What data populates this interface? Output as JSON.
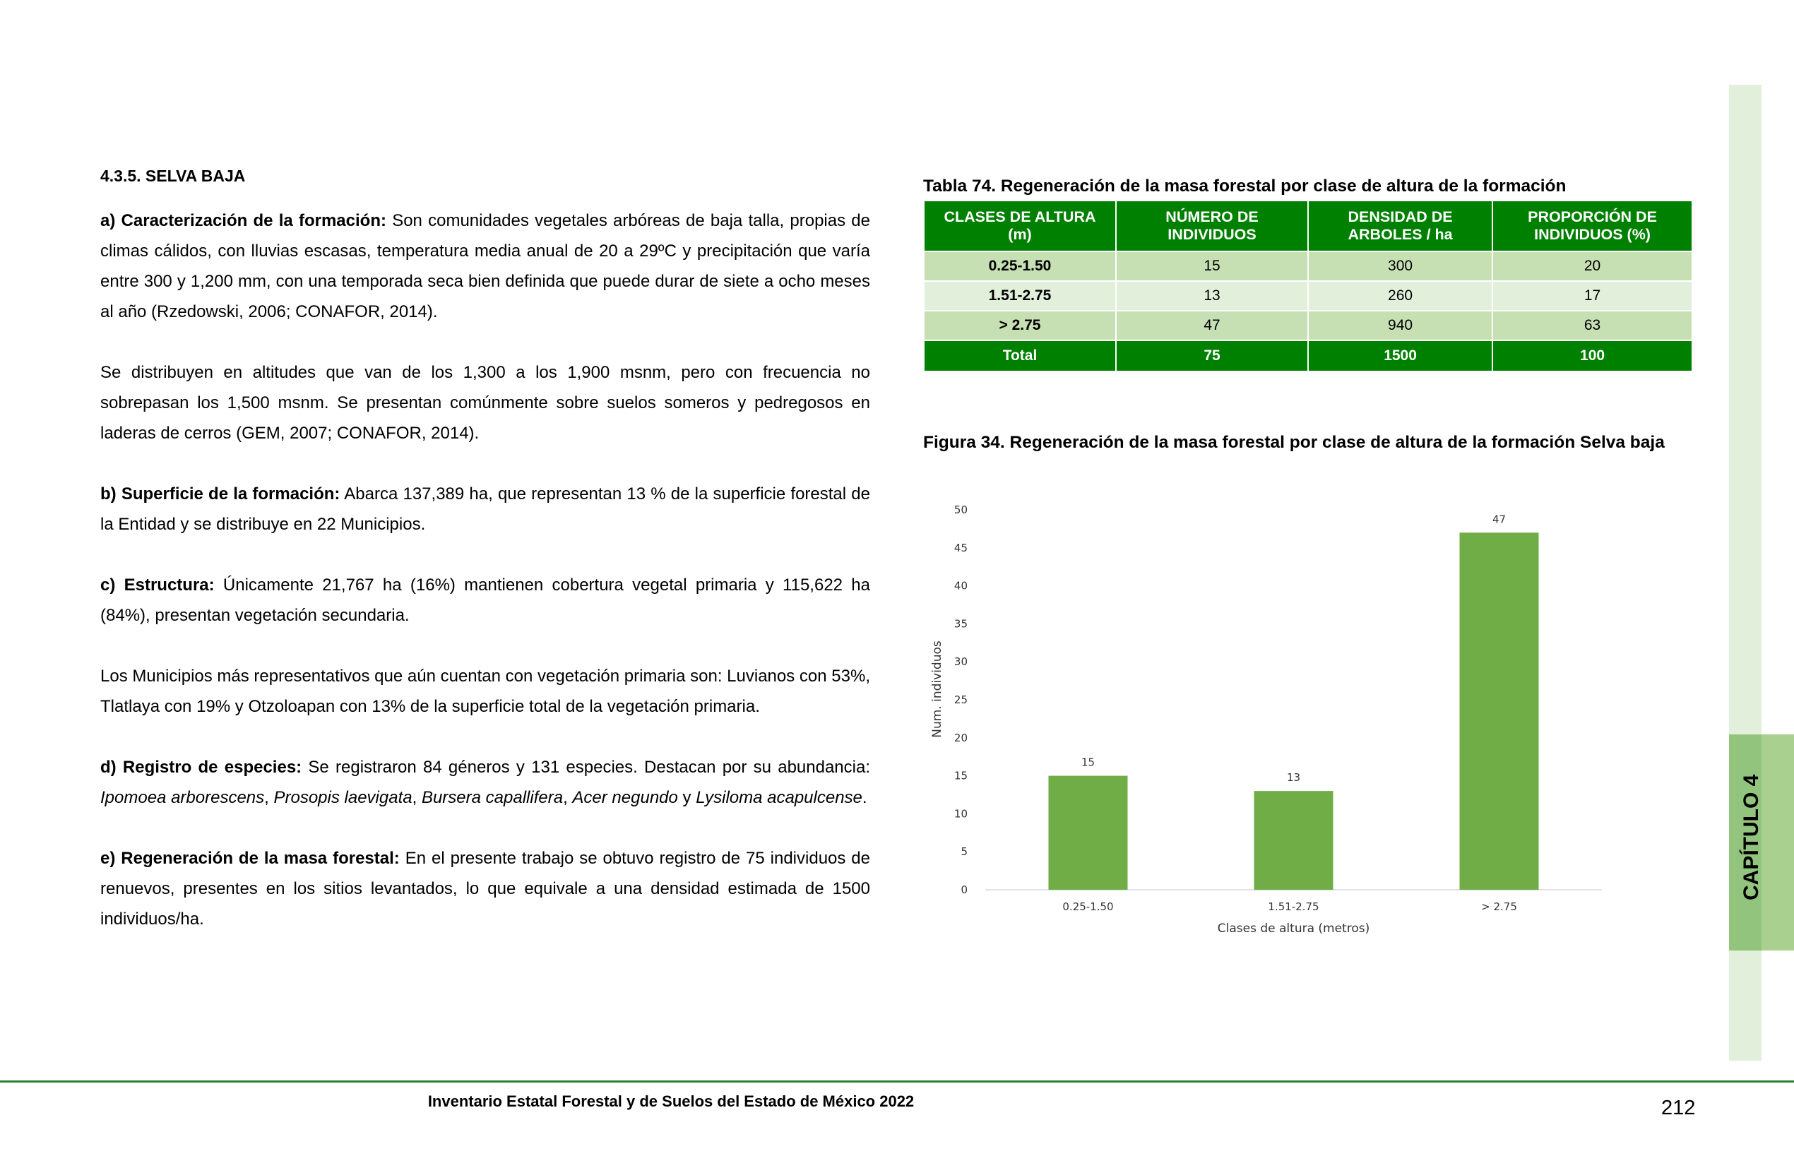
{
  "section_title": "4.3.5. SELVA BAJA",
  "paragraphs": {
    "a_label": "a) Caracterización de la formación:",
    "a_text": " Son comunidades vegetales arbóreas de baja talla, propias de climas cálidos, con lluvias escasas, temperatura media anual de 20 a 29ºC y precipitación que varía entre 300 y 1,200 mm, con una temporada seca bien definida que puede durar de siete a ocho meses al año (Rzedowski, 2006; CONAFOR, 2014).",
    "p2": "Se distribuyen en altitudes que van de los 1,300 a los 1,900 msnm, pero con frecuencia no sobrepasan los 1,500 msnm. Se presentan comúnmente sobre suelos someros y pedregosos en laderas de cerros (GEM, 2007; CONAFOR, 2014).",
    "b_label": "b) Superficie de la formación:",
    "b_text": " Abarca 137,389 ha, que representan 13 % de la superficie forestal de la Entidad y se distribuye en 22 Municipios.",
    "c_label": "c) Estructura:",
    "c_text": " Únicamente 21,767 ha (16%) mantienen cobertura vegetal primaria y 115,622 ha (84%), presentan vegetación secundaria.",
    "p5": "Los Municipios más representativos que aún cuentan con vegetación primaria son: Luvianos con 53%, Tlatlaya con 19% y Otzoloapan con 13% de la superficie total de la vegetación primaria.",
    "d_label": "d) Registro de especies:",
    "d_text": " Se registraron 84 géneros y 131 especies. Destacan por su abundancia: ",
    "d_sp1": "Ipomoea arborescens",
    "d_sep1": ", ",
    "d_sp2": "Prosopis laevigata",
    "d_sep2": ", ",
    "d_sp3": "Bursera capallifera",
    "d_sep3": ", ",
    "d_sp4": "Acer negundo",
    "d_and": " y ",
    "d_sp5": "Lysiloma acapulcense",
    "d_end": ".",
    "e_label": "e) Regeneración de la masa forestal:",
    "e_text": " En el presente trabajo se obtuvo registro de 75 individuos de renuevos, presentes en los sitios levantados, lo que equivale a una densidad estimada de 1500 individuos/ha."
  },
  "table": {
    "caption": "Tabla 74.  Regeneración de la masa forestal por clase de altura de la formación",
    "headers": [
      [
        "CLASES DE ALTURA",
        "(m)"
      ],
      [
        "NÚMERO DE",
        "INDIVIDUOS"
      ],
      [
        "DENSIDAD DE",
        "ARBOLES / ha"
      ],
      [
        "PROPORCIÓN DE",
        "INDIVIDUOS (%)"
      ]
    ],
    "rows": [
      [
        "0.25-1.50",
        "15",
        "300",
        "20"
      ],
      [
        "1.51-2.75",
        "13",
        "260",
        "17"
      ],
      [
        "> 2.75",
        "47",
        "940",
        "63"
      ]
    ],
    "total": [
      "Total",
      "75",
      "1500",
      "100"
    ]
  },
  "figure_caption": "Figura 34. Regeneración de la masa forestal por clase de altura de la formación Selva baja",
  "chart_data": {
    "type": "bar",
    "categories": [
      "0.25-1.50",
      "1.51-2.75",
      "> 2.75"
    ],
    "values": [
      15,
      13,
      47
    ],
    "title": "",
    "xlabel": "Clases de altura (metros)",
    "ylabel": "Num. individuos",
    "ylim": [
      0,
      50
    ],
    "yticks": [
      "0",
      "5",
      "10",
      "15",
      "20",
      "25",
      "30",
      "35",
      "40",
      "45",
      "50"
    ],
    "data_labels": [
      "15",
      "13",
      "47"
    ],
    "grid": false,
    "bar_color": "#70ad47"
  },
  "chapter_tab": "CAPÍTULO 4",
  "footer": "Inventario Estatal Forestal y de Suelos del Estado de México 2022",
  "page_number": "212",
  "colors": {
    "header_green": "#008000",
    "row_dark": "#c6e0b4",
    "row_light": "#e2efda",
    "bar": "#70ad47"
  }
}
